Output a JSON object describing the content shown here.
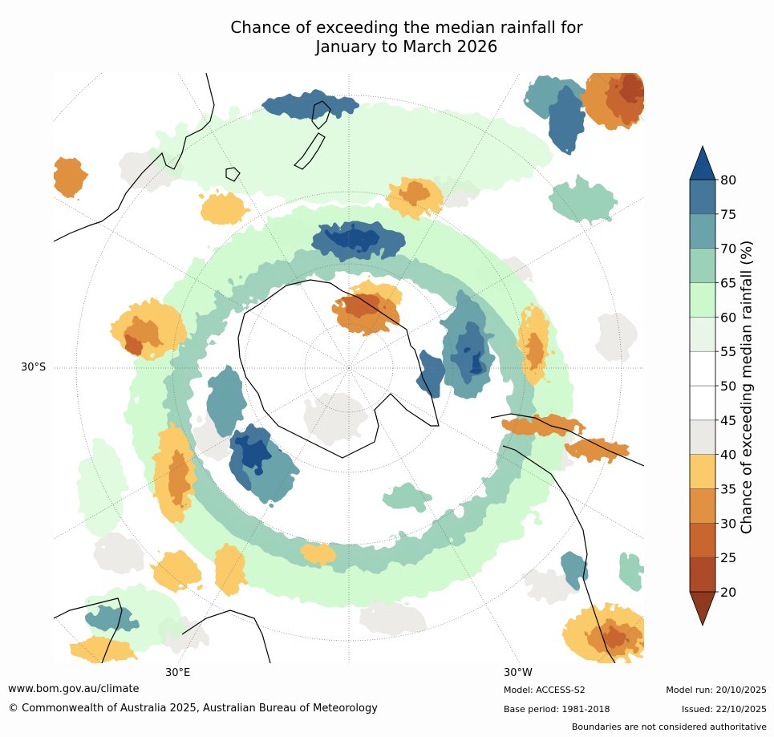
{
  "title_line1": "Chance of exceeding the median rainfall for",
  "title_line2": "January to March 2026",
  "map": {
    "lat_label": "30°S",
    "lon_labels": [
      "30°E",
      "30°W"
    ],
    "regions": [
      "Australia",
      "New Zealand",
      "Antarctica",
      "South America",
      "Southern Africa"
    ]
  },
  "colorbar": {
    "title": "Chance of exceeding median rainfall (%)",
    "ticks": [
      "20",
      "25",
      "30",
      "35",
      "40",
      "45",
      "50",
      "55",
      "60",
      "65",
      "70",
      "75",
      "80"
    ],
    "colors": [
      "#8f3a1e",
      "#ad4a28",
      "#c9652f",
      "#e09141",
      "#fbcb6b",
      "#ebe9e6",
      "#ffffff",
      "#ffffff",
      "#eaf5ea",
      "#ccf9cc",
      "#9bd0b9",
      "#6aa3a9",
      "#44779a",
      "#1a5089"
    ]
  },
  "footer": {
    "website": "www.bom.gov.au/climate",
    "copyright": "© Commonwealth of Australia 2025, Australian Bureau of Meteorology",
    "model": "Model: ACCESS-S2",
    "base_period": "Base period: 1981-2018",
    "model_run": "Model run: 20/10/2025",
    "issued": "Issued: 22/10/2025",
    "disclaimer": "Boundaries are not considered authoritative"
  }
}
